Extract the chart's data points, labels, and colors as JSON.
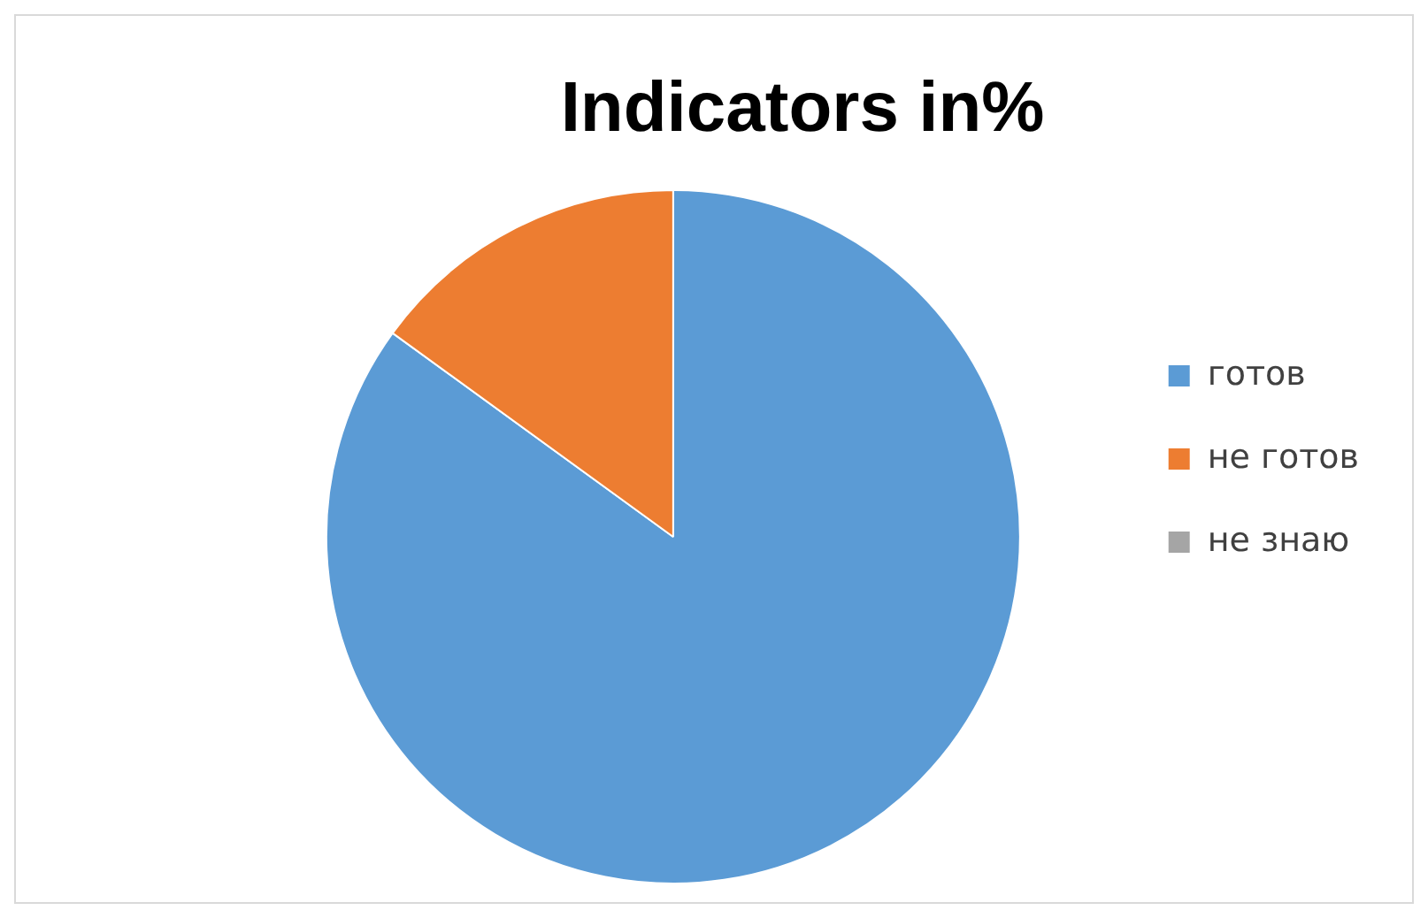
{
  "chart_data": {
    "type": "pie",
    "title": "Indicators in%",
    "categories": [
      "готов",
      "не готов",
      "не знаю"
    ],
    "values": [
      85,
      15,
      0
    ],
    "colors": [
      "#5b9bd5",
      "#ed7d31",
      "#a5a5a5"
    ],
    "legend": "right"
  }
}
